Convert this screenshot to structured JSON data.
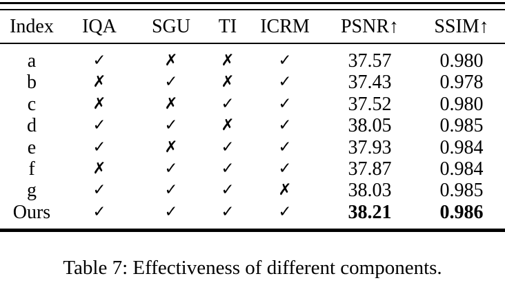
{
  "table": {
    "columns": [
      "Index",
      "IQA",
      "SGU",
      "TI",
      "ICRM",
      "PSNR↑",
      "SSIM↑"
    ],
    "rows": [
      {
        "cells": [
          "a",
          "check",
          "cross",
          "cross",
          "check",
          "37.57",
          "0.980"
        ],
        "bold_cells": []
      },
      {
        "cells": [
          "b",
          "cross",
          "check",
          "cross",
          "check",
          "37.43",
          "0.978"
        ],
        "bold_cells": []
      },
      {
        "cells": [
          "c",
          "cross",
          "cross",
          "check",
          "check",
          "37.52",
          "0.980"
        ],
        "bold_cells": []
      },
      {
        "cells": [
          "d",
          "check",
          "check",
          "cross",
          "check",
          "38.05",
          "0.985"
        ],
        "bold_cells": []
      },
      {
        "cells": [
          "e",
          "check",
          "cross",
          "check",
          "check",
          "37.93",
          "0.984"
        ],
        "bold_cells": []
      },
      {
        "cells": [
          "f",
          "cross",
          "check",
          "check",
          "check",
          "37.87",
          "0.984"
        ],
        "bold_cells": []
      },
      {
        "cells": [
          "g",
          "check",
          "check",
          "check",
          "cross",
          "38.03",
          "0.985"
        ],
        "bold_cells": []
      },
      {
        "cells": [
          "Ours",
          "check",
          "check",
          "check",
          "check",
          "38.21",
          "0.986"
        ],
        "bold_cells": [
          5,
          6
        ]
      }
    ]
  },
  "icons": {
    "check": "✓",
    "cross": "✗"
  },
  "caption": "Table 7: Effectiveness of different components.",
  "colors": {
    "text": "#000000",
    "background": "#ffffff",
    "rule": "#000000"
  }
}
